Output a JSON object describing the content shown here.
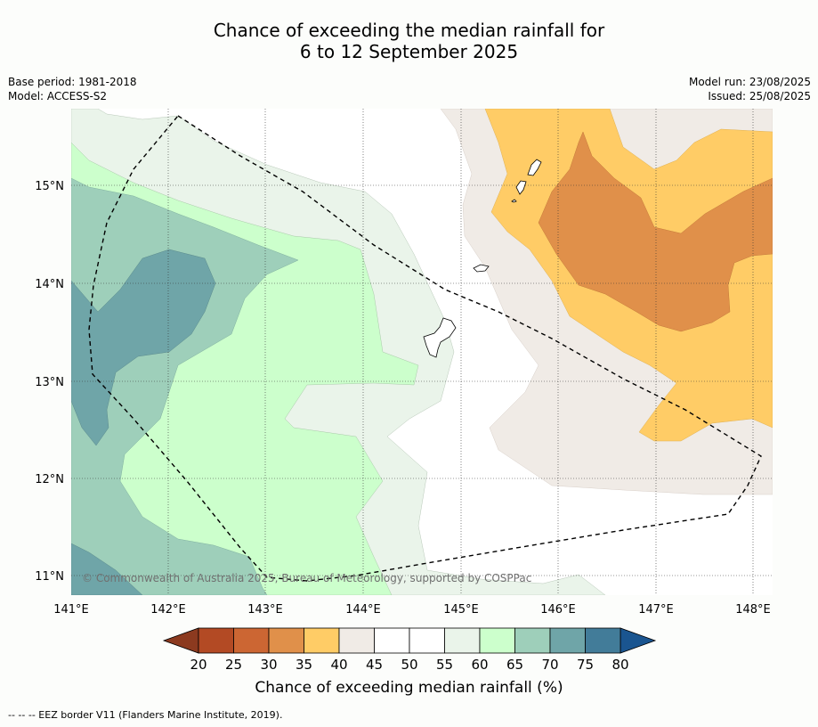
{
  "title": {
    "line1": "Chance of exceeding the median rainfall for",
    "line2": "6 to 12 September 2025"
  },
  "meta_left": {
    "base_period": "Base period: 1981-2018",
    "model": "Model: ACCESS-S2"
  },
  "meta_right": {
    "model_run": "Model run: 23/08/2025",
    "issued": "Issued: 25/08/2025"
  },
  "map": {
    "lat_labels": [
      "15°N",
      "14°N",
      "13°N",
      "12°N",
      "11°N"
    ],
    "lon_labels": [
      "141°E",
      "142°E",
      "143°E",
      "144°E",
      "145°E",
      "146°E",
      "147°E",
      "148°E"
    ],
    "copyright": "© Commonwealth of Australia 2025, Bureau of Meteorology, supported by COSPPac"
  },
  "colorbar": {
    "ticks": [
      "20",
      "25",
      "30",
      "35",
      "40",
      "45",
      "50",
      "55",
      "60",
      "65",
      "70",
      "75",
      "80"
    ],
    "label": "Chance of exceeding median rainfall (%)",
    "colors": [
      "#b34a24",
      "#cc6633",
      "#e0904a",
      "#ffcc66",
      "#f0ebe6",
      "#ffffff",
      "#ffffff",
      "#eaf4ea",
      "#ccffcc",
      "#9ecfba",
      "#6fa5a8",
      "#427c99"
    ],
    "under_color": "#8c3a1f",
    "over_color": "#1a5590"
  },
  "footer": {
    "legend_line": "--  --  -- EEZ border V11 (Flanders Marine Institute, 2019)."
  }
}
